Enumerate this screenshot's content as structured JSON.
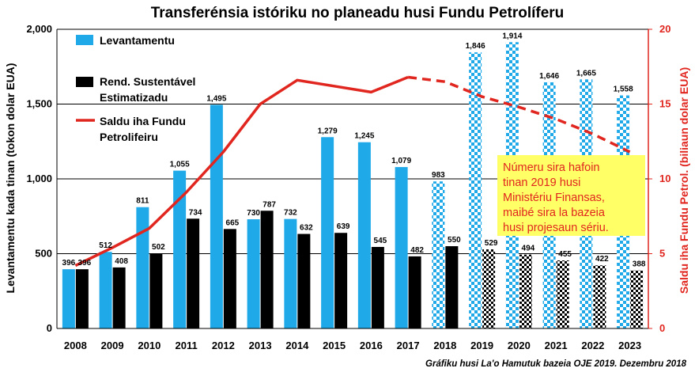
{
  "chart_data": {
    "type": "bar",
    "title": "Transferénsia istóriku no planeadu husi Fundu Petrolíferu",
    "ylabel_left": "Levantamentu kada tinan (tokon dolar EUA)",
    "ylabel_right": "Saldu iha Fundu Petrol. (biliaun dolar EUA)",
    "ylim_left": [
      0,
      2000
    ],
    "yticks_left": [
      "0",
      "500",
      "1,000",
      "1,500",
      "2,000"
    ],
    "ylim_right": [
      0,
      20
    ],
    "yticks_right": [
      "0",
      "5",
      "10",
      "15",
      "20"
    ],
    "categories": [
      "2008",
      "2009",
      "2010",
      "2011",
      "2012",
      "2013",
      "2014",
      "2015",
      "2016",
      "2017",
      "2018",
      "2019",
      "2020",
      "2021",
      "2022",
      "2023"
    ],
    "projection_start_index": 10,
    "series": [
      {
        "name": "Levantamentu",
        "kind": "bar",
        "color": "#1fa9e9",
        "values": [
          396,
          512,
          811,
          1055,
          1495,
          730,
          732,
          1279,
          1245,
          1079,
          983,
          1846,
          1914,
          1646,
          1665,
          1558
        ],
        "labels": [
          "396",
          "512",
          "811",
          "1,055",
          "1,495",
          "730",
          "732",
          "1,279",
          "1,245",
          "1,079",
          "983",
          "1,846",
          "1,914",
          "1,646",
          "1,665",
          "1,558"
        ]
      },
      {
        "name": "Rend. Sustentável Estimatizadu",
        "legend_lines": [
          "Rend. Sustentável",
          "Estimatizadu"
        ],
        "kind": "bar",
        "color": "#000000",
        "values": [
          396,
          408,
          502,
          734,
          665,
          787,
          632,
          639,
          545,
          482,
          550,
          529,
          494,
          455,
          422,
          388
        ],
        "labels": [
          "396",
          "408",
          "502",
          "734",
          "665",
          "787",
          "632",
          "639",
          "545",
          "482",
          "550",
          "529",
          "494",
          "455",
          "422",
          "388"
        ]
      },
      {
        "name": "Saldu iha Fundu Petrolifeiru",
        "legend_lines": [
          "Saldu iha Fundu",
          "Petrolifeiru"
        ],
        "kind": "line",
        "axis": "right",
        "color": "#e0261f",
        "x_index": [
          0,
          1,
          2,
          3,
          4,
          5,
          6,
          7,
          8,
          9,
          10,
          11,
          12,
          13,
          14,
          15
        ],
        "values": [
          4.2,
          5.4,
          6.7,
          9.1,
          11.8,
          15.0,
          16.6,
          16.2,
          15.8,
          16.8,
          16.5,
          15.5,
          14.8,
          14.0,
          13.0,
          11.8
        ],
        "dashed_from_index": 9
      }
    ],
    "note": [
      "Númeru sira hafoin",
      "tinan 2019 husi",
      "Ministériu Finansas,",
      "maibé sira la bazeia",
      "husi projesaun sériu."
    ],
    "source": "Gráfiku husi La'o Hamutuk bazeia OJE 2019. Dezembru 2018",
    "legend_position": "top-left"
  },
  "colors": {
    "withdrawal": "#1fa9e9",
    "sustainable": "#000000",
    "balance": "#e0261f",
    "note_bg": "#ffff66",
    "grid": "#000000"
  }
}
